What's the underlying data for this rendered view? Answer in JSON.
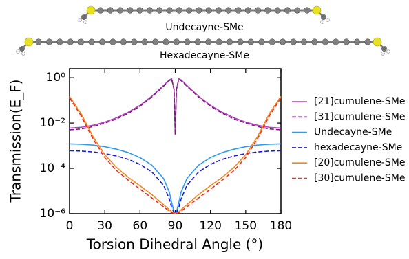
{
  "chart_data": {
    "type": "line",
    "annotations": [
      "Undecayne-SMe",
      "Hexadecayne-SMe"
    ],
    "xlabel": "Torsion Dihedral Angle (°)",
    "ylabel": "Transmission(E_F)",
    "log_y": true,
    "x": [
      0,
      10,
      20,
      30,
      40,
      50,
      60,
      70,
      80,
      85,
      87,
      89,
      90,
      91,
      93,
      95,
      100,
      110,
      120,
      130,
      140,
      150,
      160,
      170,
      180
    ],
    "series": [
      {
        "name": "[21]cumulene-SMe",
        "color": "#b83fc6",
        "dash": false,
        "values": [
          0.006,
          0.0065,
          0.008,
          0.011,
          0.017,
          0.03,
          0.06,
          0.15,
          0.45,
          0.8,
          0.9,
          0.3,
          0.003,
          0.3,
          0.9,
          0.8,
          0.45,
          0.15,
          0.06,
          0.03,
          0.017,
          0.011,
          0.008,
          0.0065,
          0.006
        ]
      },
      {
        "name": "[31]cumulene-SMe",
        "color": "#7a1f78",
        "dash": true,
        "values": [
          0.005,
          0.0055,
          0.007,
          0.01,
          0.015,
          0.027,
          0.055,
          0.14,
          0.42,
          0.75,
          0.85,
          0.3,
          0.003,
          0.3,
          0.85,
          0.75,
          0.42,
          0.14,
          0.055,
          0.027,
          0.015,
          0.01,
          0.007,
          0.0055,
          0.005
        ]
      },
      {
        "name": "Undecayne-SMe",
        "color": "#2b9cf2",
        "dash": false,
        "values": [
          0.0012,
          0.00116,
          0.00106,
          0.0009,
          0.0007,
          0.0005,
          0.0003,
          0.00014,
          3.6e-05,
          9e-06,
          3e-06,
          1.2e-06,
          1e-06,
          1.2e-06,
          3e-06,
          9e-06,
          3.6e-05,
          0.00014,
          0.0003,
          0.0005,
          0.0007,
          0.0009,
          0.00106,
          0.00116,
          0.0012
        ]
      },
      {
        "name": "hexadecayne-SMe",
        "color": "#1c1ccf",
        "dash": true,
        "values": [
          0.0006,
          0.00058,
          0.00053,
          0.00045,
          0.00035,
          0.00025,
          0.00015,
          7e-05,
          1.8e-05,
          4.5e-06,
          1.8e-06,
          1.1e-06,
          1e-06,
          1.1e-06,
          1.8e-06,
          4.5e-06,
          1.8e-05,
          7e-05,
          0.00015,
          0.00025,
          0.00035,
          0.00045,
          0.00053,
          0.00058,
          0.0006
        ]
      },
      {
        "name": "[20]cumulene-SMe",
        "color": "#f5871f",
        "dash": false,
        "values": [
          0.15,
          0.025,
          0.0025,
          0.0004,
          0.00011,
          4e-05,
          1.7e-05,
          7e-06,
          2.5e-06,
          1.5e-06,
          1.2e-06,
          1.05e-06,
          1e-06,
          1.05e-06,
          1.2e-06,
          1.5e-06,
          2.5e-06,
          7e-06,
          1.7e-05,
          4e-05,
          0.00011,
          0.0004,
          0.0025,
          0.025,
          0.15
        ]
      },
      {
        "name": "[30]cumulene-SMe",
        "color": "#f03020",
        "dash": true,
        "values": [
          0.13,
          0.02,
          0.002,
          0.0003,
          8e-05,
          3e-05,
          1.2e-05,
          5e-06,
          2e-06,
          1.3e-06,
          1.1e-06,
          1.02e-06,
          1e-06,
          1.02e-06,
          1.1e-06,
          1.3e-06,
          2e-06,
          5e-06,
          1.2e-05,
          3e-05,
          8e-05,
          0.0003,
          0.002,
          0.02,
          0.13
        ]
      }
    ],
    "xlim": [
      0,
      180
    ],
    "xticks": [
      0,
      30,
      60,
      90,
      120,
      150,
      180
    ],
    "ylim": [
      1e-06,
      2.5
    ],
    "yticks": [
      {
        "value": 1,
        "label": "10⁰"
      },
      {
        "value": 0.01,
        "label": "10⁻²"
      },
      {
        "value": 0.0001,
        "label": "10⁻⁴"
      },
      {
        "value": 1e-06,
        "label": "10⁻⁶"
      }
    ],
    "legend": "right"
  }
}
